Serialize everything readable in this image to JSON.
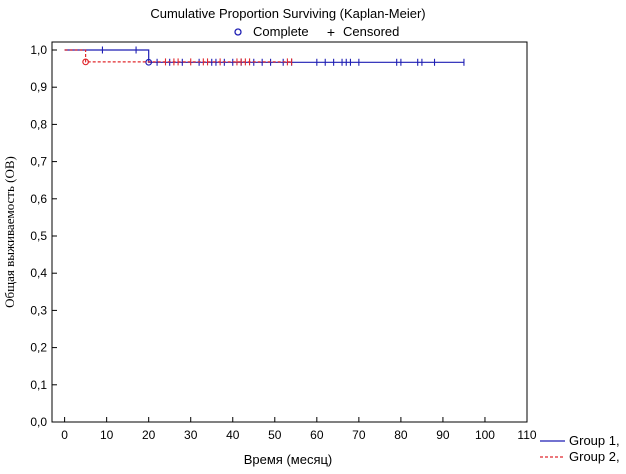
{
  "chart_data": {
    "type": "line",
    "title": "Cumulative Proportion Surviving (Kaplan-Meier)",
    "legend_top": [
      {
        "label": "Complete",
        "symbol": "o"
      },
      {
        "label": "Censored",
        "symbol": "+"
      }
    ],
    "xlabel": "Время (месяц)",
    "ylabel": "Общая выживаемость (ОВ)",
    "xlim": [
      -3,
      110
    ],
    "ylim": [
      0,
      1.0
    ],
    "x_ticks": [
      0,
      10,
      20,
      30,
      40,
      50,
      60,
      70,
      80,
      90,
      100,
      110
    ],
    "y_ticks": [
      0.0,
      0.1,
      0.2,
      0.3,
      0.4,
      0.5,
      0.6,
      0.7,
      0.8,
      0.9,
      1.0
    ],
    "y_tick_labels": [
      "0,0",
      "0,1",
      "0,2",
      "0,3",
      "0,4",
      "0,5",
      "0,6",
      "0,7",
      "0,8",
      "0,9",
      "1,0"
    ],
    "grid": false,
    "series": [
      {
        "name": "Group 1,",
        "color": "#1f1fb4",
        "dash": "solid",
        "steps": [
          [
            0,
            1.0
          ],
          [
            20,
            1.0
          ],
          [
            20,
            0.967
          ],
          [
            95,
            0.967
          ]
        ],
        "complete": [
          [
            20,
            0.967
          ]
        ],
        "censored": [
          [
            9,
            1.0
          ],
          [
            17,
            1.0
          ],
          [
            22,
            0.967
          ],
          [
            25,
            0.967
          ],
          [
            28,
            0.967
          ],
          [
            32,
            0.967
          ],
          [
            35,
            0.967
          ],
          [
            36,
            0.967
          ],
          [
            38,
            0.967
          ],
          [
            40,
            0.967
          ],
          [
            42,
            0.967
          ],
          [
            45,
            0.967
          ],
          [
            47,
            0.967
          ],
          [
            49,
            0.967
          ],
          [
            52,
            0.967
          ],
          [
            54,
            0.967
          ],
          [
            60,
            0.967
          ],
          [
            62,
            0.967
          ],
          [
            64,
            0.967
          ],
          [
            66,
            0.967
          ],
          [
            67,
            0.967
          ],
          [
            68,
            0.967
          ],
          [
            70,
            0.967
          ],
          [
            79,
            0.967
          ],
          [
            80,
            0.967
          ],
          [
            84,
            0.967
          ],
          [
            85,
            0.967
          ],
          [
            88,
            0.967
          ],
          [
            95,
            0.967
          ]
        ]
      },
      {
        "name": "Group 2,",
        "color": "#e0282d",
        "dash": "dashed",
        "steps": [
          [
            0,
            1.0
          ],
          [
            5,
            1.0
          ],
          [
            5,
            0.968
          ],
          [
            54,
            0.968
          ]
        ],
        "complete": [
          [
            5,
            0.968
          ]
        ],
        "censored": [
          [
            24,
            0.968
          ],
          [
            26,
            0.968
          ],
          [
            27,
            0.968
          ],
          [
            30,
            0.968
          ],
          [
            33,
            0.968
          ],
          [
            34,
            0.968
          ],
          [
            37,
            0.968
          ],
          [
            41,
            0.968
          ],
          [
            42,
            0.968
          ],
          [
            43,
            0.968
          ],
          [
            44,
            0.968
          ],
          [
            53,
            0.968
          ],
          [
            54,
            0.968
          ]
        ]
      }
    ]
  }
}
